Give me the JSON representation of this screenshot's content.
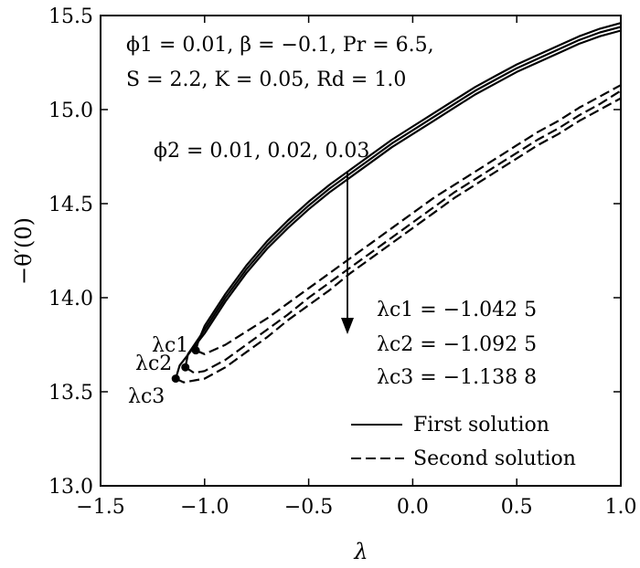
{
  "chart_data": {
    "type": "line",
    "xlabel": "λ",
    "ylabel": "−θ′(0)",
    "xlim": [
      -1.5,
      1.0
    ],
    "ylim": [
      13.0,
      15.5
    ],
    "xticks": [
      "−1.5",
      "−1.0",
      "−0.5",
      "0.0",
      "0.5",
      "1.0"
    ],
    "yticks": [
      "13.0",
      "13.5",
      "14.0",
      "14.5",
      "15.0",
      "15.5"
    ],
    "grid": false,
    "legend_placement": "bottom-right",
    "legend": [
      {
        "label": "First solution",
        "style": "solid"
      },
      {
        "label": "Second solution",
        "style": "dashed"
      }
    ],
    "parameters_line1": "ϕ1 = 0.01, β = −0.1, Pr = 6.5,",
    "parameters_line2": "S = 2.2, K = 0.05, Rd = 1.0",
    "arrow_label": "ϕ2 = 0.01, 0.02, 0.03",
    "critical_values": [
      {
        "label": "λc1 = −1.042 5"
      },
      {
        "label": "λc2 = −1.092 5"
      },
      {
        "label": "λc3 = −1.138 8"
      }
    ],
    "critical_point_labels": [
      "λc1",
      "λc2",
      "λc3"
    ],
    "series": [
      {
        "style": "solid",
        "x": [
          -1.0425,
          -1.03,
          -1.0,
          -0.9,
          -0.8,
          -0.7,
          -0.6,
          -0.5,
          -0.4,
          -0.3,
          -0.2,
          -0.1,
          0.0,
          0.1,
          0.2,
          0.3,
          0.4,
          0.5,
          0.6,
          0.7,
          0.8,
          0.9,
          1.0
        ],
        "y": [
          13.72,
          13.77,
          13.85,
          14.02,
          14.17,
          14.3,
          14.41,
          14.51,
          14.6,
          14.68,
          14.76,
          14.84,
          14.91,
          14.98,
          15.05,
          15.12,
          15.18,
          15.24,
          15.29,
          15.34,
          15.39,
          15.43,
          15.46
        ]
      },
      {
        "style": "solid",
        "x": [
          -1.0925,
          -1.08,
          -1.0,
          -0.9,
          -0.8,
          -0.7,
          -0.6,
          -0.5,
          -0.4,
          -0.3,
          -0.2,
          -0.1,
          0.0,
          0.1,
          0.2,
          0.3,
          0.4,
          0.5,
          0.6,
          0.7,
          0.8,
          0.9,
          1.0
        ],
        "y": [
          13.63,
          13.7,
          13.83,
          14.0,
          14.15,
          14.28,
          14.39,
          14.49,
          14.58,
          14.66,
          14.74,
          14.82,
          14.89,
          14.96,
          15.03,
          15.1,
          15.16,
          15.22,
          15.27,
          15.32,
          15.37,
          15.41,
          15.44
        ]
      },
      {
        "style": "solid",
        "x": [
          -1.1388,
          -1.12,
          -1.0,
          -0.9,
          -0.8,
          -0.7,
          -0.6,
          -0.5,
          -0.4,
          -0.3,
          -0.2,
          -0.1,
          0.0,
          0.1,
          0.2,
          0.3,
          0.4,
          0.5,
          0.6,
          0.7,
          0.8,
          0.9,
          1.0
        ],
        "y": [
          13.57,
          13.64,
          13.81,
          13.98,
          14.13,
          14.26,
          14.37,
          14.47,
          14.56,
          14.64,
          14.72,
          14.8,
          14.87,
          14.94,
          15.01,
          15.08,
          15.14,
          15.2,
          15.25,
          15.3,
          15.35,
          15.39,
          15.42
        ]
      },
      {
        "style": "dashed",
        "x": [
          -1.0425,
          -1.0,
          -0.9,
          -0.8,
          -0.7,
          -0.6,
          -0.5,
          -0.4,
          -0.3,
          -0.2,
          -0.1,
          0.0,
          0.1,
          0.2,
          0.3,
          0.4,
          0.5,
          0.6,
          0.7,
          0.8,
          0.9,
          1.0
        ],
        "y": [
          13.72,
          13.7,
          13.75,
          13.82,
          13.89,
          13.97,
          14.05,
          14.13,
          14.21,
          14.29,
          14.37,
          14.45,
          14.53,
          14.6,
          14.67,
          14.74,
          14.81,
          14.88,
          14.94,
          15.01,
          15.07,
          15.13
        ]
      },
      {
        "style": "dashed",
        "x": [
          -1.0925,
          -1.05,
          -1.0,
          -0.9,
          -0.8,
          -0.7,
          -0.6,
          -0.5,
          -0.4,
          -0.3,
          -0.2,
          -0.1,
          0.0,
          0.1,
          0.2,
          0.3,
          0.4,
          0.5,
          0.6,
          0.7,
          0.8,
          0.9,
          1.0
        ],
        "y": [
          13.63,
          13.6,
          13.61,
          13.67,
          13.75,
          13.83,
          13.91,
          14.0,
          14.08,
          14.16,
          14.24,
          14.32,
          14.4,
          14.48,
          14.56,
          14.63,
          14.7,
          14.77,
          14.84,
          14.9,
          14.97,
          15.03,
          15.1
        ]
      },
      {
        "style": "dashed",
        "x": [
          -1.1388,
          -1.1,
          -1.0,
          -0.9,
          -0.8,
          -0.7,
          -0.6,
          -0.5,
          -0.4,
          -0.3,
          -0.2,
          -0.1,
          0.0,
          0.1,
          0.2,
          0.3,
          0.4,
          0.5,
          0.6,
          0.7,
          0.8,
          0.9,
          1.0
        ],
        "y": [
          13.57,
          13.55,
          13.57,
          13.63,
          13.71,
          13.79,
          13.88,
          13.96,
          14.04,
          14.13,
          14.21,
          14.29,
          14.37,
          14.45,
          14.53,
          14.6,
          14.67,
          14.74,
          14.81,
          14.87,
          14.94,
          15.0,
          15.06
        ]
      }
    ],
    "critical_points": [
      {
        "x": -1.0425,
        "y": 13.72
      },
      {
        "x": -1.0925,
        "y": 13.63
      },
      {
        "x": -1.1388,
        "y": 13.57
      }
    ]
  }
}
